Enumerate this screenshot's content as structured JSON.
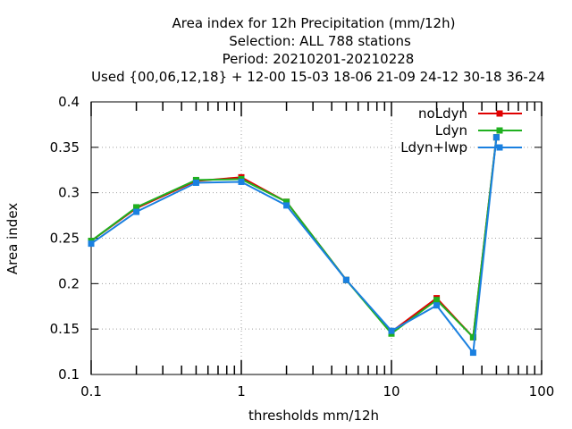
{
  "chart_data": {
    "type": "line",
    "title_lines": [
      "Area index  for 12h Precipitation (mm/12h)",
      "Selection: ALL    788 stations",
      "Period: 20210201-20210228",
      "Used {00,06,12,18} + 12-00 15-03 18-06 21-09 24-12 30-18 36-24"
    ],
    "xlabel": "thresholds mm/12h",
    "ylabel": "Area index",
    "x_scale": "log",
    "xlim": [
      0.1,
      100
    ],
    "ylim": [
      0.1,
      0.4
    ],
    "x_tick_labels": [
      "0.1",
      "1",
      "10",
      "100"
    ],
    "y_tick_labels": [
      "0.1",
      "0.15",
      "0.2",
      "0.25",
      "0.3",
      "0.35",
      "0.4"
    ],
    "grid": true,
    "legend_position": "top-right",
    "x": [
      0.1,
      0.2,
      0.5,
      1,
      2,
      5,
      10,
      20,
      35,
      50
    ],
    "series": [
      {
        "name": "noLdyn",
        "color": "#e00000",
        "values": [
          0.247,
          0.283,
          0.313,
          0.317,
          0.29,
          0.204,
          0.147,
          0.184,
          0.141,
          0.361
        ]
      },
      {
        "name": "Ldyn",
        "color": "#20b020",
        "values": [
          0.247,
          0.284,
          0.314,
          0.315,
          0.29,
          0.204,
          0.145,
          0.182,
          0.141,
          0.361
        ]
      },
      {
        "name": "Ldyn+lwp",
        "color": "#1a80e0",
        "values": [
          0.244,
          0.279,
          0.311,
          0.312,
          0.286,
          0.204,
          0.148,
          0.176,
          0.124,
          0.361
        ]
      }
    ]
  }
}
